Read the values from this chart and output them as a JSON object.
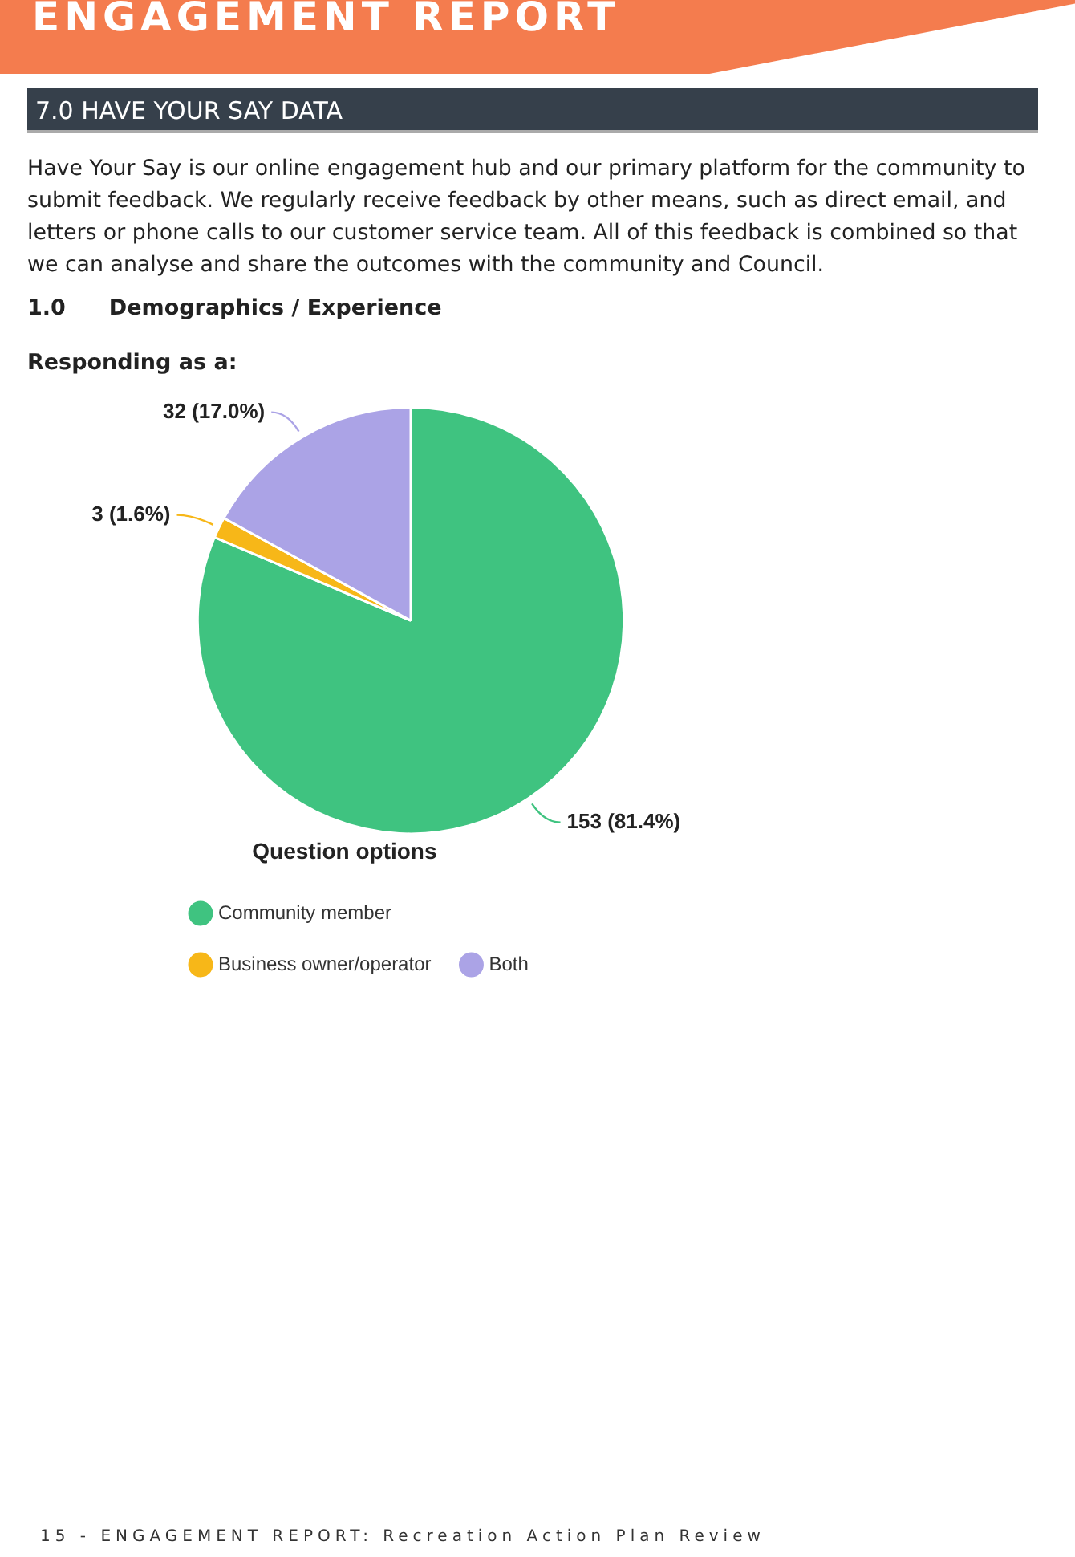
{
  "chart_data": {
    "type": "pie",
    "title": "Responding as a:",
    "categories": [
      "Community member",
      "Business owner/operator",
      "Both"
    ],
    "values": [
      153,
      3,
      32
    ],
    "colors": [
      "#3fc380",
      "#f7b718",
      "#aba3e6"
    ],
    "value_labels": [
      "153 (81.4%)",
      "3 (1.6%)",
      "32 (17.0%)"
    ],
    "legend": "bottom",
    "legend_title": "Question options",
    "annotations": [
      "ENGAGEMENT REPORT",
      "7.0 HAVE YOUR SAY DATA",
      "Have Your Say is our online engagement hub and our primary platform for the community to submit feedback. We regularly receive feedback by other means, such as direct email, and letters or phone calls to our customer service team. All of this feedback is combined so that we can analyse and share the outcomes with the community and Council.",
      "1.0  Demographics / Experience",
      "15 - ENGAGEMENT REPORT: Recreation Action Plan Review"
    ]
  }
}
